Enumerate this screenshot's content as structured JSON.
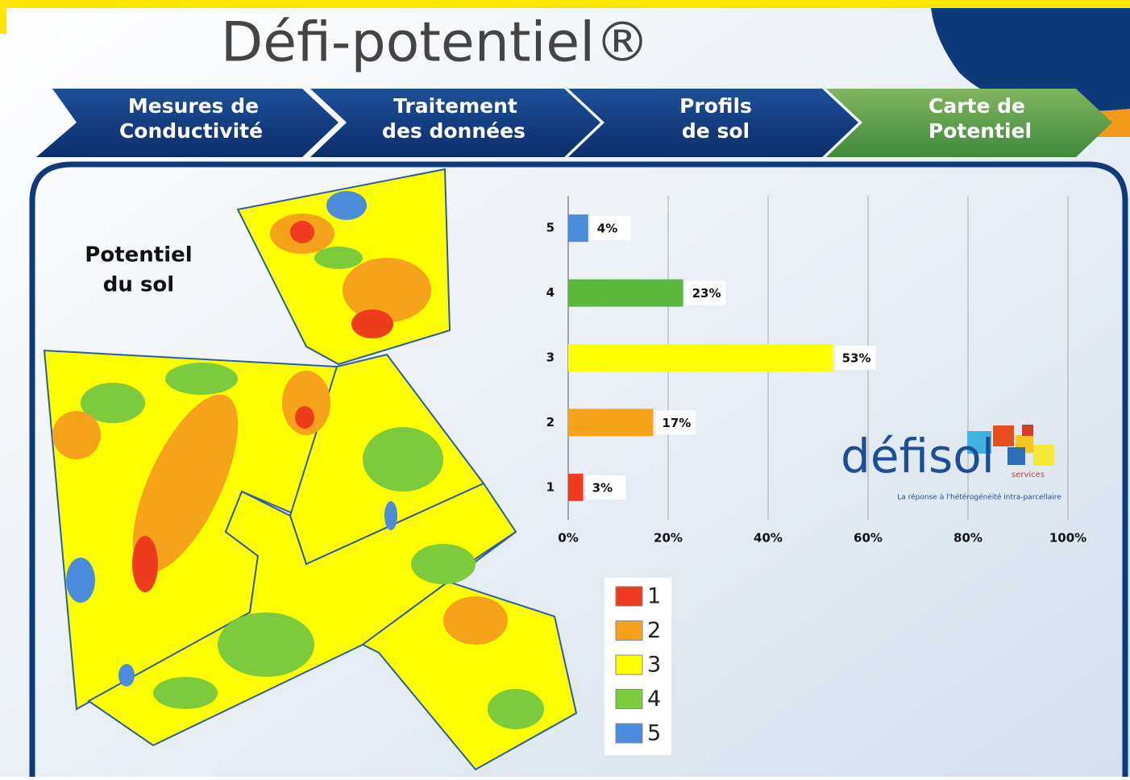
{
  "title": "Défi-potentiel®",
  "steps": [
    {
      "line1": "Mesures de",
      "line2": "Conductivité"
    },
    {
      "line1": "Traitement",
      "line2": "des données"
    },
    {
      "line1": "Profils",
      "line2": "de sol"
    },
    {
      "line1": "Carte de",
      "line2": "Potentiel"
    }
  ],
  "map_label": {
    "line1": "Potentiel",
    "line2": "du sol"
  },
  "legend": [
    {
      "label": "1",
      "color": "#f03c1e"
    },
    {
      "label": "2",
      "color": "#f7a21b"
    },
    {
      "label": "3",
      "color": "#ffff00"
    },
    {
      "label": "4",
      "color": "#7ccb3c"
    },
    {
      "label": "5",
      "color": "#4a8bdc"
    }
  ],
  "logo": {
    "name_a": "défi",
    "name_b": "sol",
    "sub": "services",
    "tagline": "La réponse à l'hétérogénéité intra-parcellaire"
  },
  "chart_data": {
    "type": "hbar",
    "categories": [
      "5",
      "4",
      "3",
      "2",
      "1"
    ],
    "values": [
      4,
      23,
      53,
      17,
      3
    ],
    "value_labels": [
      "4%",
      "23%",
      "53%",
      "17%",
      "3%"
    ],
    "colors": [
      "#4a8bdc",
      "#5cb83c",
      "#ffff00",
      "#f7a21b",
      "#f03c1e"
    ],
    "xlim": [
      0,
      100
    ],
    "xticks": [
      {
        "value": 0,
        "label": "0%"
      },
      {
        "value": 20,
        "label": "20%"
      },
      {
        "value": 40,
        "label": "40%"
      },
      {
        "value": 60,
        "label": "60%"
      },
      {
        "value": 80,
        "label": "80%"
      },
      {
        "value": 100,
        "label": "100%"
      }
    ],
    "grid": true
  }
}
